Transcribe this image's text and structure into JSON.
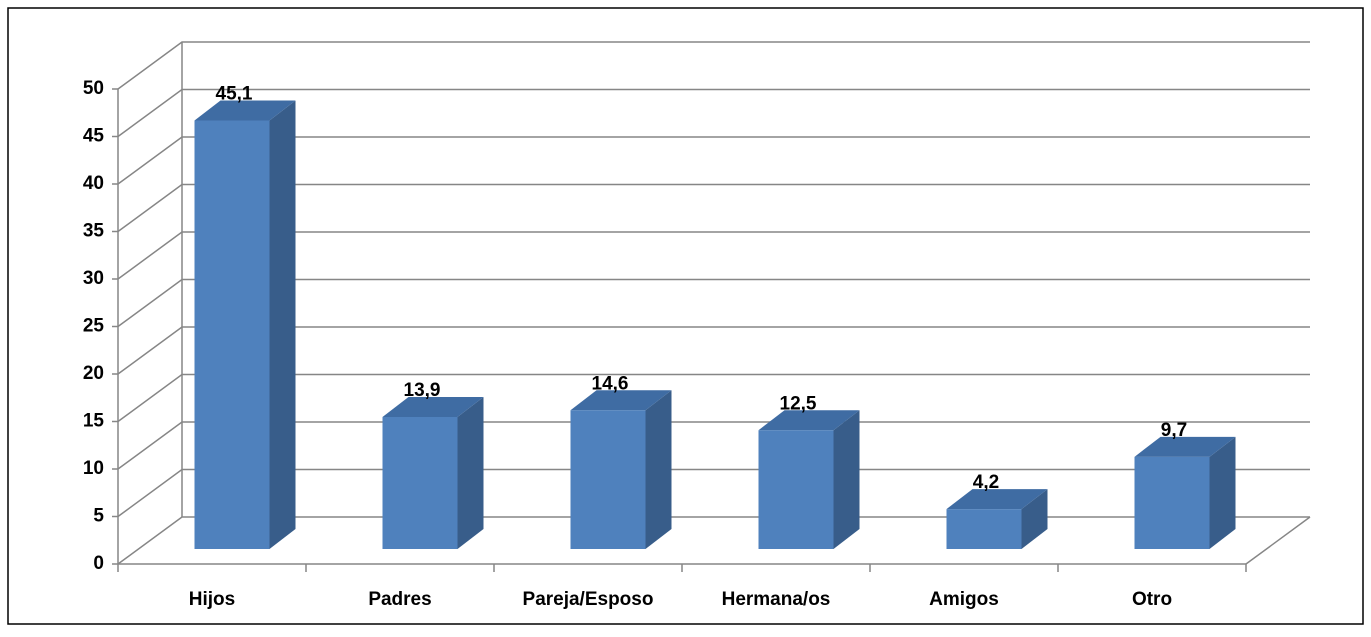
{
  "chart_data": {
    "type": "bar3d",
    "categories": [
      "Hijos",
      "Padres",
      "Pareja/Esposo",
      "Hermana/os",
      "Amigos",
      "Otro"
    ],
    "values": [
      45.1,
      13.9,
      14.6,
      12.5,
      4.2,
      9.7
    ],
    "value_labels": [
      "45,1",
      "13,9",
      "14,6",
      "12,5",
      "4,2",
      "9,7"
    ],
    "color": "#4f81bd",
    "ylim": [
      0,
      50
    ],
    "yticks": [
      0,
      5,
      10,
      15,
      20,
      25,
      30,
      35,
      40,
      45,
      50
    ],
    "grid": true
  }
}
